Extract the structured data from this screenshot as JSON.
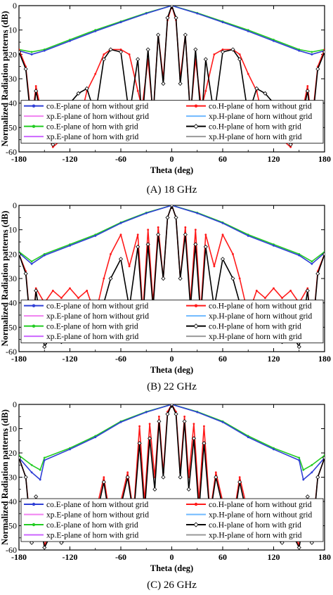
{
  "figure": {
    "ylabel": "Normalized Radiation patterns (dB)",
    "xlabel": "Theta (deg)"
  },
  "legend_entries": [
    {
      "label": "co.E-plane of horn without grid",
      "color": "#2f3fd6",
      "marker": "star"
    },
    {
      "label": "co.H-plane of horn without grid",
      "color": "#ff1a1a",
      "marker": "star"
    },
    {
      "label": "xp.E-plane of horn without grid",
      "color": "#f080f0",
      "marker": "none"
    },
    {
      "label": "xp.H-plane of horn without grid",
      "color": "#6fb9ff",
      "marker": "none"
    },
    {
      "label": "co.E-plane of horn with grid",
      "color": "#22cc22",
      "marker": "star"
    },
    {
      "label": "co.H-plane of horn with grid",
      "color": "#000000",
      "marker": "diamond"
    },
    {
      "label": "xp.E-plane of horn with grid",
      "color": "#cc66ff",
      "marker": "none"
    },
    {
      "label": "xp.H-plane of horn with grid",
      "color": "#999999",
      "marker": "none"
    }
  ],
  "chart_data": [
    {
      "type": "line",
      "caption": "(A) 18 GHz",
      "xlabel": "Theta (deg)",
      "ylabel": "Normalized Radiation patterns (dB)",
      "xlim": [
        -180,
        180
      ],
      "ylim": [
        -60,
        0
      ],
      "xticks": [
        "-180",
        "-120",
        "-60",
        "0",
        "60",
        "120",
        "180"
      ],
      "yticks": [
        "0",
        "-10",
        "-20",
        "-30",
        "-40",
        "-50",
        "-60"
      ],
      "series": [
        {
          "name": "co.E-plane of horn with grid",
          "color": "#22cc22",
          "x": [
            -180,
            -165,
            -150,
            -120,
            -90,
            -60,
            -30,
            0,
            30,
            60,
            90,
            120,
            150,
            165,
            180
          ],
          "y": [
            -18,
            -19,
            -18,
            -14,
            -10,
            -6.5,
            -3,
            0,
            -3,
            -6.5,
            -10,
            -14,
            -18,
            -19,
            -18
          ]
        },
        {
          "name": "co.E-plane of horn without grid",
          "color": "#2f3fd6",
          "x": [
            -180,
            -165,
            -150,
            -120,
            -90,
            -60,
            -30,
            0,
            30,
            60,
            90,
            120,
            150,
            165,
            180
          ],
          "y": [
            -18.5,
            -20,
            -18.5,
            -14.5,
            -10.5,
            -6.8,
            -3.2,
            0,
            -3.2,
            -6.8,
            -10.5,
            -14.5,
            -18.5,
            -20,
            -18.5
          ]
        },
        {
          "name": "co.H-plane of horn without grid",
          "color": "#ff1a1a",
          "x": [
            -180,
            -172,
            -165,
            -160,
            -150,
            -140,
            -130,
            -120,
            -110,
            -100,
            -90,
            -80,
            -72,
            -60,
            -50,
            -40,
            -35,
            -28,
            -22,
            -16,
            -10,
            -5,
            0,
            5,
            10,
            16,
            22,
            28,
            35,
            40,
            50,
            60,
            72,
            80,
            90,
            100,
            110,
            120,
            130,
            140,
            150,
            160,
            165,
            172,
            180
          ],
          "y": [
            -18,
            -25,
            -48,
            -33,
            -50,
            -58,
            -55,
            -56,
            -50,
            -35,
            -28,
            -20,
            -18,
            -18,
            -20,
            -35,
            -42,
            -22,
            -45,
            -12,
            -30,
            -6,
            0,
            -6,
            -30,
            -12,
            -45,
            -22,
            -42,
            -35,
            -20,
            -18,
            -18,
            -20,
            -28,
            -35,
            -50,
            -56,
            -55,
            -58,
            -50,
            -33,
            -48,
            -25,
            -18
          ]
        },
        {
          "name": "co.H-plane of horn with grid",
          "color": "#000000",
          "x": [
            -180,
            -172,
            -165,
            -160,
            -150,
            -140,
            -130,
            -120,
            -110,
            -100,
            -90,
            -80,
            -72,
            -60,
            -50,
            -40,
            -35,
            -28,
            -22,
            -16,
            -10,
            -5,
            0,
            5,
            10,
            16,
            22,
            28,
            35,
            40,
            50,
            60,
            72,
            80,
            90,
            100,
            110,
            120,
            130,
            140,
            150,
            160,
            165,
            172,
            180
          ],
          "y": [
            -19,
            -26,
            -50,
            -35,
            -52,
            -57,
            -50,
            -40,
            -36,
            -34,
            -45,
            -22,
            -18,
            -19,
            -45,
            -22,
            -48,
            -18,
            -46,
            -12,
            -32,
            -5,
            0,
            -5,
            -32,
            -12,
            -46,
            -18,
            -48,
            -22,
            -45,
            -19,
            -18,
            -22,
            -45,
            -34,
            -36,
            -40,
            -50,
            -57,
            -52,
            -35,
            -50,
            -26,
            -19
          ]
        }
      ]
    },
    {
      "type": "line",
      "caption": "(B) 22 GHz",
      "xlabel": "Theta (deg)",
      "ylabel": "Normalized Radiation patterns (dB)",
      "xlim": [
        -180,
        180
      ],
      "ylim": [
        -60,
        0
      ],
      "xticks": [
        "-180",
        "-120",
        "-60",
        "0",
        "60",
        "120",
        "180"
      ],
      "yticks": [
        "0",
        "-10",
        "-20",
        "-30",
        "-40",
        "-50",
        "-60"
      ],
      "series": [
        {
          "name": "co.E-plane of horn with grid",
          "color": "#22cc22",
          "x": [
            -180,
            -165,
            -150,
            -120,
            -90,
            -60,
            -30,
            0,
            30,
            60,
            90,
            120,
            150,
            165,
            180
          ],
          "y": [
            -19,
            -23,
            -20,
            -16,
            -12,
            -7,
            -3,
            0,
            -3,
            -7,
            -12,
            -16,
            -20,
            -23,
            -19
          ]
        },
        {
          "name": "co.E-plane of horn without grid",
          "color": "#2f3fd6",
          "x": [
            -180,
            -165,
            -150,
            -120,
            -90,
            -60,
            -30,
            0,
            30,
            60,
            90,
            120,
            150,
            165,
            180
          ],
          "y": [
            -19.5,
            -24,
            -20.5,
            -16.5,
            -12.5,
            -7.3,
            -3.2,
            0,
            -3.2,
            -7.3,
            -12.5,
            -16.5,
            -20.5,
            -24,
            -19.5
          ]
        },
        {
          "name": "co.H-plane of horn without grid",
          "color": "#ff1a1a",
          "x": [
            -180,
            -172,
            -165,
            -160,
            -150,
            -140,
            -130,
            -120,
            -110,
            -100,
            -90,
            -80,
            -72,
            -60,
            -50,
            -40,
            -34,
            -28,
            -22,
            -16,
            -10,
            -5,
            0,
            5,
            10,
            16,
            22,
            28,
            34,
            40,
            50,
            60,
            72,
            80,
            90,
            100,
            110,
            120,
            130,
            140,
            150,
            160,
            165,
            172,
            180
          ],
          "y": [
            -20,
            -27,
            -55,
            -34,
            -40,
            -35,
            -38,
            -34,
            -38,
            -35,
            -45,
            -30,
            -20,
            -12,
            -25,
            -12,
            -44,
            -10,
            -40,
            -9,
            -30,
            -5,
            0,
            -5,
            -30,
            -9,
            -40,
            -10,
            -44,
            -12,
            -25,
            -12,
            -20,
            -30,
            -45,
            -35,
            -38,
            -34,
            -38,
            -35,
            -40,
            -34,
            -55,
            -27,
            -20
          ]
        },
        {
          "name": "co.H-plane of horn with grid",
          "color": "#000000",
          "x": [
            -180,
            -172,
            -165,
            -160,
            -150,
            -140,
            -130,
            -120,
            -110,
            -100,
            -90,
            -80,
            -72,
            -60,
            -50,
            -40,
            -34,
            -28,
            -22,
            -16,
            -10,
            -5,
            0,
            5,
            10,
            16,
            22,
            28,
            34,
            40,
            50,
            60,
            72,
            80,
            90,
            100,
            110,
            120,
            130,
            140,
            150,
            160,
            165,
            172,
            180
          ],
          "y": [
            -20,
            -28,
            -55,
            -35,
            -58,
            -52,
            -56,
            -55,
            -50,
            -52,
            -55,
            -40,
            -30,
            -22,
            -42,
            -17,
            -46,
            -16,
            -42,
            -12,
            -30,
            -5,
            0,
            -5,
            -30,
            -12,
            -42,
            -16,
            -46,
            -17,
            -42,
            -22,
            -30,
            -40,
            -55,
            -52,
            -50,
            -55,
            -56,
            -52,
            -58,
            -35,
            -55,
            -28,
            -20
          ]
        }
      ]
    },
    {
      "type": "line",
      "caption": "(C) 26 GHz",
      "xlabel": "Theta (deg)",
      "ylabel": "Normalized Radiation patterns (dB)",
      "xlim": [
        -180,
        180
      ],
      "ylim": [
        -60,
        0
      ],
      "xticks": [
        "-180",
        "-120",
        "-60",
        "0",
        "60",
        "120",
        "180"
      ],
      "yticks": [
        "0",
        "-10",
        "-20",
        "-30",
        "-40",
        "-50",
        "-60"
      ],
      "series": [
        {
          "name": "co.E-plane of horn with grid",
          "color": "#22cc22",
          "x": [
            -180,
            -165,
            -155,
            -150,
            -120,
            -90,
            -60,
            -30,
            0,
            30,
            60,
            90,
            120,
            150,
            155,
            165,
            180
          ],
          "y": [
            -21,
            -25,
            -27,
            -22,
            -18,
            -13,
            -7,
            -3,
            0,
            -3,
            -7,
            -13,
            -18,
            -22,
            -27,
            -25,
            -21
          ]
        },
        {
          "name": "co.E-plane of horn without grid",
          "color": "#2f3fd6",
          "x": [
            -180,
            -165,
            -155,
            -150,
            -120,
            -90,
            -60,
            -30,
            0,
            30,
            60,
            90,
            120,
            150,
            155,
            165,
            180
          ],
          "y": [
            -22,
            -28,
            -31,
            -23,
            -18.5,
            -13.5,
            -7.3,
            -3.2,
            0,
            -3.2,
            -7.3,
            -13.5,
            -18.5,
            -23,
            -31,
            -28,
            -22
          ]
        },
        {
          "name": "co.H-plane of horn without grid",
          "color": "#ff1a1a",
          "x": [
            -180,
            -172,
            -165,
            -160,
            -150,
            -140,
            -130,
            -120,
            -110,
            -100,
            -90,
            -80,
            -72,
            -60,
            -52,
            -45,
            -38,
            -32,
            -26,
            -20,
            -15,
            -10,
            -5,
            0,
            5,
            10,
            15,
            20,
            26,
            32,
            38,
            45,
            52,
            60,
            72,
            80,
            90,
            100,
            110,
            120,
            130,
            140,
            150,
            160,
            165,
            172,
            180
          ],
          "y": [
            -22,
            -30,
            -55,
            -38,
            -58,
            -50,
            -56,
            -52,
            -50,
            -52,
            -45,
            -30,
            -48,
            -40,
            -28,
            -45,
            -9,
            -40,
            -8,
            -30,
            -5,
            -28,
            -3,
            0,
            -3,
            -28,
            -5,
            -30,
            -8,
            -40,
            -9,
            -45,
            -28,
            -40,
            -48,
            -30,
            -45,
            -52,
            -50,
            -52,
            -56,
            -50,
            -58,
            -38,
            -55,
            -30,
            -22
          ]
        },
        {
          "name": "co.H-plane of horn with grid",
          "color": "#000000",
          "x": [
            -180,
            -172,
            -165,
            -160,
            -150,
            -140,
            -130,
            -120,
            -110,
            -100,
            -90,
            -80,
            -72,
            -60,
            -52,
            -45,
            -38,
            -32,
            -26,
            -20,
            -15,
            -10,
            -5,
            0,
            5,
            10,
            15,
            20,
            26,
            32,
            38,
            45,
            52,
            60,
            72,
            80,
            90,
            100,
            110,
            120,
            130,
            140,
            150,
            160,
            165,
            172,
            180
          ],
          "y": [
            -22,
            -30,
            -57,
            -38,
            -59,
            -52,
            -57,
            -55,
            -52,
            -55,
            -48,
            -32,
            -50,
            -42,
            -30,
            -46,
            -16,
            -44,
            -14,
            -35,
            -7,
            -30,
            -4,
            0,
            -4,
            -30,
            -7,
            -35,
            -14,
            -44,
            -16,
            -46,
            -30,
            -42,
            -50,
            -32,
            -48,
            -55,
            -52,
            -55,
            -57,
            -52,
            -59,
            -38,
            -57,
            -30,
            -22
          ]
        }
      ]
    }
  ]
}
